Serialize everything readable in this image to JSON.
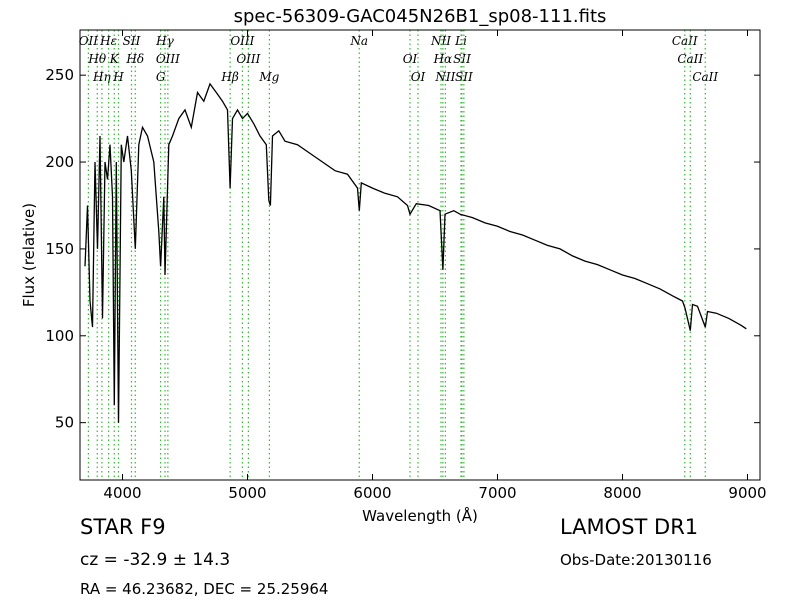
{
  "chart_data": {
    "type": "line",
    "title": "spec-56309-GAC045N26B1_sp08-111.fits",
    "x_label": "Wavelength (Å)",
    "y_label": "Flux (relative)",
    "xlim": [
      3660,
      9100
    ],
    "ylim": [
      17,
      276
    ],
    "xticks": [
      4000,
      5000,
      6000,
      7000,
      8000,
      9000
    ],
    "yticks": [
      50,
      100,
      150,
      200,
      250
    ],
    "color": "#000000",
    "line_color": "#33bb33",
    "x": [
      3700,
      3720,
      3740,
      3760,
      3780,
      3800,
      3820,
      3840,
      3860,
      3880,
      3900,
      3920,
      3934,
      3950,
      3968,
      3990,
      4010,
      4040,
      4070,
      4102,
      4130,
      4160,
      4200,
      4250,
      4290,
      4305,
      4330,
      4340,
      4370,
      4400,
      4450,
      4500,
      4550,
      4600,
      4650,
      4700,
      4750,
      4800,
      4840,
      4861,
      4880,
      4920,
      4960,
      5000,
      5050,
      5100,
      5150,
      5170,
      5183,
      5200,
      5250,
      5300,
      5400,
      5500,
      5600,
      5700,
      5800,
      5880,
      5894,
      5910,
      6000,
      6100,
      6200,
      6280,
      6300,
      6350,
      6450,
      6540,
      6563,
      6580,
      6650,
      6700,
      6800,
      6900,
      7000,
      7100,
      7200,
      7300,
      7400,
      7500,
      7600,
      7700,
      7800,
      7900,
      8000,
      8100,
      8200,
      8300,
      8400,
      8480,
      8500,
      8542,
      8560,
      8600,
      8662,
      8680,
      8750,
      8850,
      8950,
      8990
    ],
    "values": [
      140,
      175,
      120,
      105,
      200,
      150,
      215,
      110,
      200,
      190,
      210,
      180,
      60,
      200,
      50,
      210,
      200,
      215,
      195,
      150,
      210,
      220,
      215,
      200,
      160,
      140,
      180,
      135,
      210,
      215,
      225,
      230,
      220,
      240,
      235,
      245,
      240,
      235,
      230,
      185,
      225,
      230,
      225,
      228,
      222,
      215,
      210,
      178,
      175,
      215,
      218,
      212,
      210,
      205,
      200,
      195,
      193,
      185,
      172,
      188,
      185,
      182,
      180,
      175,
      170,
      176,
      175,
      172,
      138,
      170,
      172,
      170,
      168,
      165,
      163,
      160,
      158,
      155,
      152,
      150,
      146,
      143,
      141,
      138,
      135,
      133,
      130,
      127,
      123,
      120,
      116,
      103,
      118,
      117,
      105,
      114,
      113,
      110,
      106,
      104
    ],
    "lines": [
      {
        "label": "OII",
        "x": 3727
      },
      {
        "label": "Hθ",
        "x": 3798
      },
      {
        "label": "Hη",
        "x": 3835
      },
      {
        "label": "Hε",
        "x": 3889
      },
      {
        "label": "K",
        "x": 3934
      },
      {
        "label": "H",
        "x": 3968
      },
      {
        "label": "SII",
        "x": 4072
      },
      {
        "label": "Hδ",
        "x": 4102
      },
      {
        "label": "G",
        "x": 4305
      },
      {
        "label": "Hγ",
        "x": 4340
      },
      {
        "label": "OIII",
        "x": 4363
      },
      {
        "label": "Hβ",
        "x": 4861
      },
      {
        "label": "OIII",
        "x": 4959
      },
      {
        "label": "OIII",
        "x": 5007
      },
      {
        "label": "Mg",
        "x": 5175
      },
      {
        "label": "Na",
        "x": 5894
      },
      {
        "label": "OI",
        "x": 6300
      },
      {
        "label": "OI",
        "x": 6364
      },
      {
        "label": "NII",
        "x": 6548
      },
      {
        "label": "Hα",
        "x": 6563
      },
      {
        "label": "NII",
        "x": 6583
      },
      {
        "label": "Li",
        "x": 6708
      },
      {
        "label": "SII",
        "x": 6716
      },
      {
        "label": "SII",
        "x": 6731
      },
      {
        "label": "CaII",
        "x": 8498
      },
      {
        "label": "CaII",
        "x": 8542
      },
      {
        "label": "CaII",
        "x": 8662
      }
    ]
  },
  "info": {
    "object": "STAR   F9",
    "cz": "cz = -32.9 ± 14.3",
    "coords": "RA = 46.23682, DEC = 25.25964",
    "survey": "LAMOST DR1",
    "obs_date": "Obs-Date:20130116"
  }
}
